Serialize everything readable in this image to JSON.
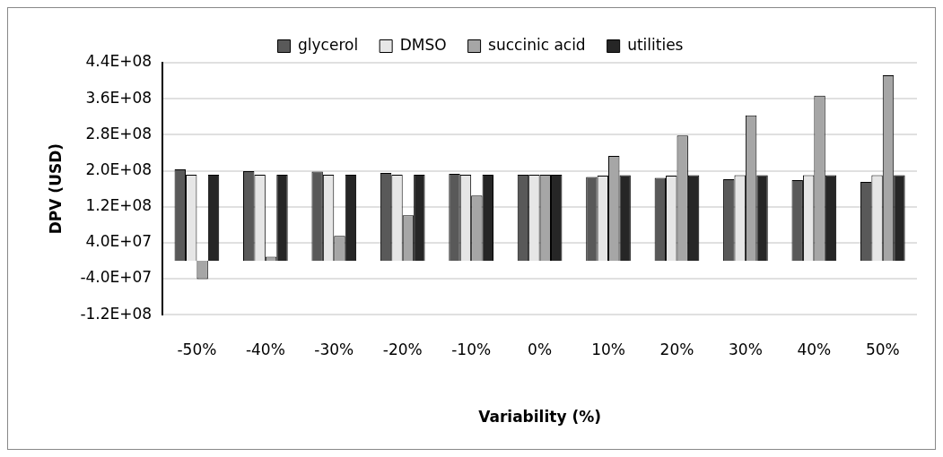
{
  "chart_data": {
    "type": "bar",
    "xlabel": "Variability (%)",
    "ylabel": "DPV (USD)",
    "categories": [
      "-50%",
      "-40%",
      "-30%",
      "-20%",
      "-10%",
      "0%",
      "10%",
      "20%",
      "30%",
      "40%",
      "50%"
    ],
    "series": [
      {
        "name": "glycerol",
        "color": "#595959",
        "values": [
          203000000,
          199000000,
          198000000,
          195000000,
          193000000,
          191000000,
          186000000,
          184000000,
          181000000,
          179000000,
          175000000
        ]
      },
      {
        "name": "DMSO",
        "color": "#e6e6e6",
        "values": [
          191000000,
          191000000,
          191000000,
          191000000,
          191000000,
          191000000,
          189000000,
          189000000,
          190000000,
          190000000,
          190000000
        ]
      },
      {
        "name": "succinic acid",
        "color": "#a6a6a6",
        "values": [
          -41000000,
          9000000,
          55000000,
          101000000,
          145000000,
          191000000,
          233000000,
          278000000,
          323000000,
          367000000,
          412000000
        ]
      },
      {
        "name": "utilities",
        "color": "#262626",
        "values": [
          191000000,
          191000000,
          191000000,
          191000000,
          191000000,
          191000000,
          190000000,
          190000000,
          190000000,
          190000000,
          190000000
        ]
      }
    ],
    "ylim": [
      -120000000,
      440000000
    ],
    "yticks": [
      {
        "value": -120000000,
        "label": "-1.2E+08"
      },
      {
        "value": -40000000,
        "label": "-4.0E+07"
      },
      {
        "value": 40000000,
        "label": "4.0E+07"
      },
      {
        "value": 120000000,
        "label": "1.2E+08"
      },
      {
        "value": 200000000,
        "label": "2.0E+08"
      },
      {
        "value": 280000000,
        "label": "2.8E+08"
      },
      {
        "value": 360000000,
        "label": "3.6E+08"
      },
      {
        "value": 440000000,
        "label": "4.4E+08"
      }
    ],
    "grid": "y",
    "legend": "top"
  }
}
